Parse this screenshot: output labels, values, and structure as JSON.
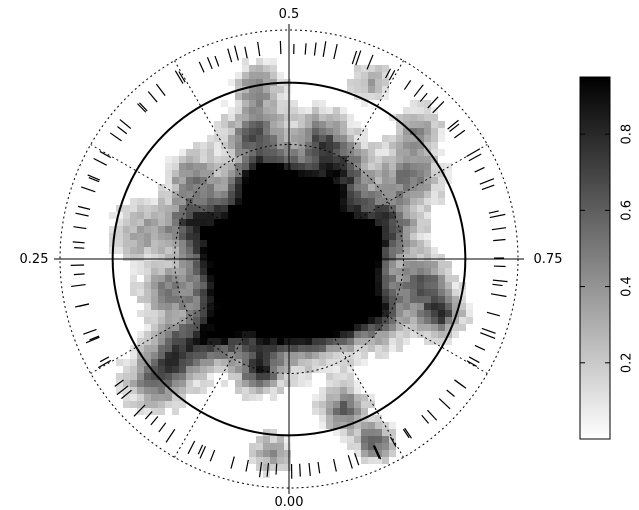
{
  "chart_data": {
    "type": "heatmap",
    "projection": "polar",
    "angle_labels": {
      "top": "0.5",
      "left": "0.25",
      "right": "0.75",
      "bottom": "0.00"
    },
    "colorbar": {
      "colormap": "gray_reversed",
      "range": [
        0,
        0.95
      ],
      "ticks": [
        0.2,
        0.4,
        0.6,
        0.8
      ],
      "tick_labels": [
        "0.2",
        "0.4",
        "0.6",
        "0.8"
      ],
      "orientation": "vertical"
    },
    "grid": true,
    "solid_circle_fraction": 0.77,
    "dotted_circle_fractions": [
      0.25,
      0.5,
      1.0
    ],
    "spoke_count": 12,
    "blobs": [
      {
        "angle_deg": 0,
        "r": 0.0,
        "spread": 0.22,
        "value": 0.85
      },
      {
        "angle_deg": 0,
        "r": 0.12,
        "spread": 0.14,
        "value": 0.9
      },
      {
        "angle_deg": 30,
        "r": 0.18,
        "spread": 0.12,
        "value": 0.8
      },
      {
        "angle_deg": 60,
        "r": 0.2,
        "spread": 0.12,
        "value": 0.75
      },
      {
        "angle_deg": 100,
        "r": 0.22,
        "spread": 0.12,
        "value": 0.7
      },
      {
        "angle_deg": 150,
        "r": 0.2,
        "spread": 0.12,
        "value": 0.7
      },
      {
        "angle_deg": 200,
        "r": 0.22,
        "spread": 0.12,
        "value": 0.65
      },
      {
        "angle_deg": 250,
        "r": 0.2,
        "spread": 0.12,
        "value": 0.6
      },
      {
        "angle_deg": 300,
        "r": 0.22,
        "spread": 0.12,
        "value": 0.7
      },
      {
        "angle_deg": 340,
        "r": 0.18,
        "spread": 0.12,
        "value": 0.8
      },
      {
        "angle_deg": 160,
        "r": 0.35,
        "spread": 0.06,
        "value": 0.95
      },
      {
        "angle_deg": 165,
        "r": 0.55,
        "spread": 0.08,
        "value": 0.6
      },
      {
        "angle_deg": 170,
        "r": 0.76,
        "spread": 0.07,
        "value": 0.4
      },
      {
        "angle_deg": 45,
        "r": 0.45,
        "spread": 0.08,
        "value": 0.7
      },
      {
        "angle_deg": 50,
        "r": 0.62,
        "spread": 0.08,
        "value": 0.6
      },
      {
        "angle_deg": 48,
        "r": 0.78,
        "spread": 0.08,
        "value": 0.55
      },
      {
        "angle_deg": 110,
        "r": 0.45,
        "spread": 0.08,
        "value": 0.55
      },
      {
        "angle_deg": 100,
        "r": 0.65,
        "spread": 0.08,
        "value": 0.3
      },
      {
        "angle_deg": 15,
        "r": 0.5,
        "spread": 0.06,
        "value": 0.7
      },
      {
        "angle_deg": 5,
        "r": 0.85,
        "spread": 0.05,
        "value": 0.4
      },
      {
        "angle_deg": 340,
        "r": 0.7,
        "spread": 0.06,
        "value": 0.55
      },
      {
        "angle_deg": 335,
        "r": 0.88,
        "spread": 0.05,
        "value": 0.6
      },
      {
        "angle_deg": 300,
        "r": 0.45,
        "spread": 0.08,
        "value": 0.65
      },
      {
        "angle_deg": 290,
        "r": 0.7,
        "spread": 0.06,
        "value": 0.7
      },
      {
        "angle_deg": 280,
        "r": 0.6,
        "spread": 0.07,
        "value": 0.55
      },
      {
        "angle_deg": 250,
        "r": 0.45,
        "spread": 0.09,
        "value": 0.55
      },
      {
        "angle_deg": 235,
        "r": 0.65,
        "spread": 0.08,
        "value": 0.5
      },
      {
        "angle_deg": 225,
        "r": 0.8,
        "spread": 0.06,
        "value": 0.4
      },
      {
        "angle_deg": 210,
        "r": 0.45,
        "spread": 0.08,
        "value": 0.55
      },
      {
        "angle_deg": 205,
        "r": 0.85,
        "spread": 0.05,
        "value": 0.3
      },
      {
        "angle_deg": 195,
        "r": 0.55,
        "spread": 0.07,
        "value": 0.5
      },
      {
        "angle_deg": 130,
        "r": 0.55,
        "spread": 0.07,
        "value": 0.4
      },
      {
        "angle_deg": 75,
        "r": 0.55,
        "spread": 0.07,
        "value": 0.45
      },
      {
        "angle_deg": 180,
        "r": 0.3,
        "spread": 0.08,
        "value": 0.6
      },
      {
        "angle_deg": 270,
        "r": 0.3,
        "spread": 0.08,
        "value": 0.6
      },
      {
        "angle_deg": 320,
        "r": 0.3,
        "spread": 0.08,
        "value": 0.7
      }
    ],
    "rim_tick_count": 110
  }
}
